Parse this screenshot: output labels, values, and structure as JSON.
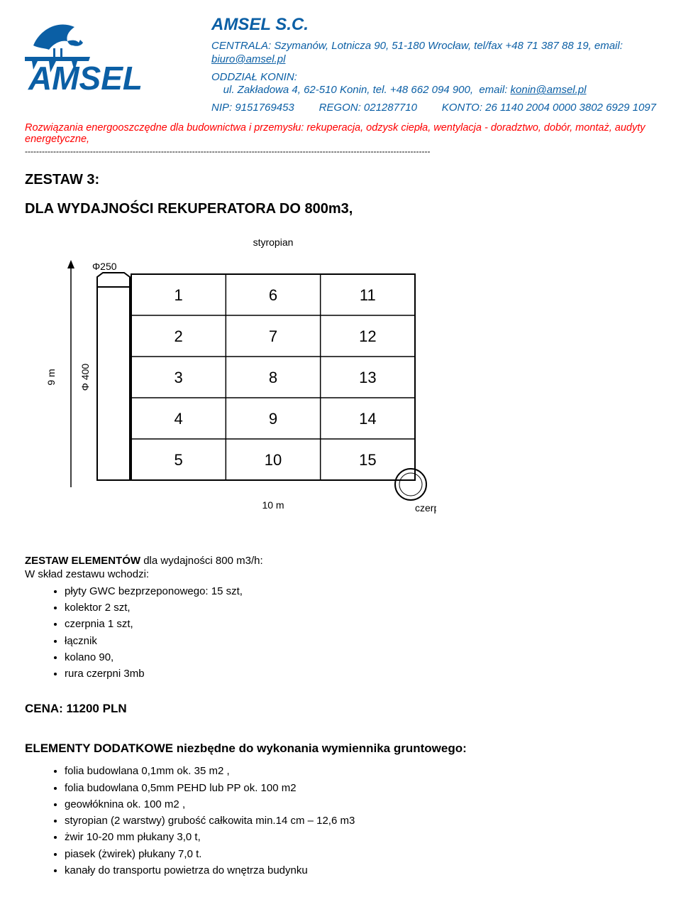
{
  "header": {
    "company": "AMSEL S.C.",
    "line1_label": "CENTRALA:",
    "line1_rest": " Szymanów, Lotnicza 90, 51-180 Wrocław, tel/fax +48 71 387 88 19, email: ",
    "line1_email": "biuro@amsel.pl",
    "line2_label": "ODDZIAŁ KONIN:",
    "line2_rest": "    ul. Zakładowa 4, 62-510 Konin, tel. +48 662 094 900,  email: ",
    "line2_email": "konin@amsel.pl",
    "nip_label": "NIP: 9151769453",
    "regon_label": "REGON: 021287710",
    "konto_label": "KONTO: 26 1140 2004 0000 3802 6929 1097"
  },
  "tagline": "Rozwiązania energooszczędne dla budownictwa i przemysłu: rekuperacja, odzysk ciepła, wentylacja - doradztwo, dobór, montaż, audyty energetyczne,",
  "dashes": "-----------------------------------------------------------------------------------------------------------------------------------------------",
  "zestaw_title": "ZESTAW 3:",
  "zestaw_subtitle": "DLA WYDAJNOŚCI REKUPERATORA DO 800m3,",
  "diagram": {
    "top_label": "styropian",
    "phi_top": "Φ250",
    "phi_side": "Φ 400",
    "y_label": "9 m",
    "bottom_label": "10 m",
    "czerpnia_label": "czerpnia",
    "grid_cols": 3,
    "grid_rows": 5,
    "cells": [
      "1",
      "2",
      "3",
      "4",
      "5",
      "6",
      "7",
      "8",
      "9",
      "10",
      "11",
      "12",
      "13",
      "14",
      "15"
    ],
    "stroke": "#000000",
    "bg": "#ffffff",
    "font_size_cell": 22,
    "font_size_label": 14
  },
  "elements": {
    "heading_bold": "ZESTAW ELEMENTÓW",
    "heading_rest": " dla wydajności 800 m3/h:",
    "lead": "W skład zestawu wchodzi:",
    "items": [
      "płyty GWC bezprzeponowego: 15 szt,",
      "kolektor 2 szt,",
      "czerpnia 1 szt,",
      "łącznik",
      "kolano 90,",
      "rura czerpni 3mb"
    ]
  },
  "price": "CENA: 11200 PLN",
  "extras": {
    "heading": "ELEMENTY DODATKOWE niezbędne do wykonania wymiennika gruntowego:",
    "items": [
      "folia budowlana 0,1mm ok. 35 m2 ,",
      "folia budowlana 0,5mm PEHD lub PP ok. 100 m2",
      "geowłóknina ok. 100 m2 ,",
      "styropian (2 warstwy) grubość całkowita min.14 cm – 12,6 m3",
      "żwir 10-20 mm płukany 3,0 t,",
      "piasek (żwirek) płukany  7,0 t.",
      "kanały do transportu powietrza do wnętrza budynku"
    ]
  },
  "logo": {
    "bird_color": "#0b5fa5",
    "text_color": "#0b5fa5",
    "bg": "#ffffff"
  }
}
